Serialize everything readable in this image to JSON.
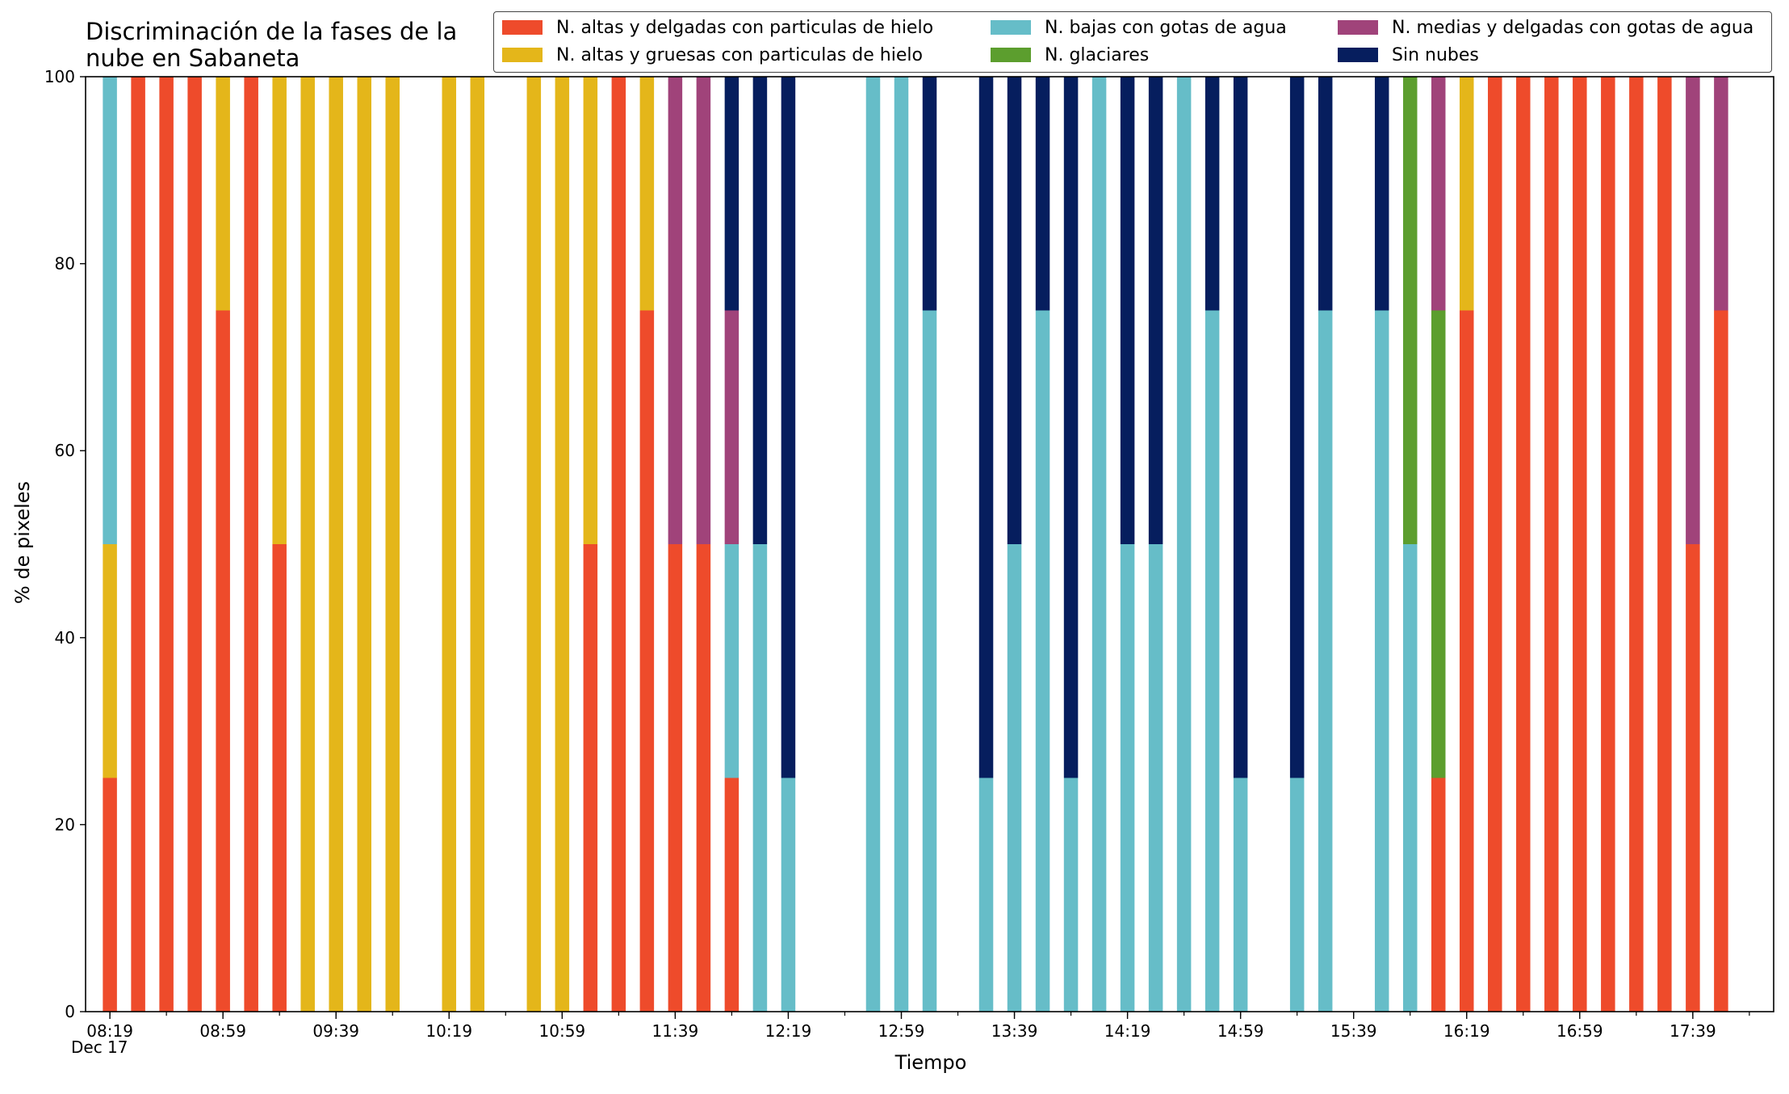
{
  "chart_data": {
    "type": "bar",
    "stacked": true,
    "title_lines": [
      "Discriminación de la fases de la",
      "nube en Sabaneta"
    ],
    "xlabel": "Tiempo",
    "xlabel_secondary": "Dec 17",
    "ylabel": "% de pixeles",
    "ylim": [
      0,
      100
    ],
    "yticks": [
      0,
      20,
      40,
      60,
      80,
      100
    ],
    "x_start": "08:19",
    "x_end": "17:59",
    "x_step_minutes": 10,
    "xtick_labels": [
      "08:19",
      "08:59",
      "09:39",
      "10:19",
      "10:59",
      "11:39",
      "12:19",
      "12:59",
      "13:39",
      "14:19",
      "14:59",
      "15:39",
      "16:19",
      "16:59",
      "17:39"
    ],
    "grid": false,
    "legend_position": "top-right",
    "series": [
      {
        "name": "N. altas y delgadas con particulas de hielo",
        "color": "#ee4b2b"
      },
      {
        "name": "N. altas y gruesas con particulas de hielo",
        "color": "#e4b61a"
      },
      {
        "name": "N. bajas con gotas de agua",
        "color": "#66bdc8"
      },
      {
        "name": "N. glaciares",
        "color": "#5c9e2e"
      },
      {
        "name": "N. medias y delgadas con gotas de agua",
        "color": "#a0437a"
      },
      {
        "name": "Sin nubes",
        "color": "#061e5e"
      }
    ],
    "bars": [
      {
        "time": "08:19",
        "values": [
          25,
          25,
          50,
          0,
          0,
          0
        ]
      },
      {
        "time": "08:29",
        "values": [
          100,
          0,
          0,
          0,
          0,
          0
        ]
      },
      {
        "time": "08:39",
        "values": [
          100,
          0,
          0,
          0,
          0,
          0
        ]
      },
      {
        "time": "08:49",
        "values": [
          100,
          0,
          0,
          0,
          0,
          0
        ]
      },
      {
        "time": "08:59",
        "values": [
          75,
          25,
          0,
          0,
          0,
          0
        ]
      },
      {
        "time": "09:09",
        "values": [
          100,
          0,
          0,
          0,
          0,
          0
        ]
      },
      {
        "time": "09:19",
        "values": [
          50,
          50,
          0,
          0,
          0,
          0
        ]
      },
      {
        "time": "09:29",
        "values": [
          0,
          100,
          0,
          0,
          0,
          0
        ]
      },
      {
        "time": "09:39",
        "values": [
          0,
          100,
          0,
          0,
          0,
          0
        ]
      },
      {
        "time": "09:49",
        "values": [
          0,
          100,
          0,
          0,
          0,
          0
        ]
      },
      {
        "time": "09:59",
        "values": [
          0,
          100,
          0,
          0,
          0,
          0
        ]
      },
      {
        "time": "10:19",
        "values": [
          0,
          100,
          0,
          0,
          0,
          0
        ]
      },
      {
        "time": "10:29",
        "values": [
          0,
          100,
          0,
          0,
          0,
          0
        ]
      },
      {
        "time": "10:49",
        "values": [
          0,
          100,
          0,
          0,
          0,
          0
        ]
      },
      {
        "time": "10:59",
        "values": [
          0,
          100,
          0,
          0,
          0,
          0
        ]
      },
      {
        "time": "11:09",
        "values": [
          50,
          50,
          0,
          0,
          0,
          0
        ]
      },
      {
        "time": "11:19",
        "values": [
          100,
          0,
          0,
          0,
          0,
          0
        ]
      },
      {
        "time": "11:29",
        "values": [
          75,
          25,
          0,
          0,
          0,
          0
        ]
      },
      {
        "time": "11:39",
        "values": [
          50,
          0,
          0,
          0,
          50,
          0
        ]
      },
      {
        "time": "11:49",
        "values": [
          50,
          0,
          0,
          0,
          50,
          0
        ]
      },
      {
        "time": "11:59",
        "values": [
          25,
          0,
          25,
          0,
          25,
          25
        ]
      },
      {
        "time": "12:09",
        "values": [
          0,
          0,
          50,
          0,
          0,
          50
        ]
      },
      {
        "time": "12:19",
        "values": [
          0,
          0,
          25,
          0,
          0,
          75
        ]
      },
      {
        "time": "12:49",
        "values": [
          0,
          0,
          100,
          0,
          0,
          0
        ]
      },
      {
        "time": "12:59",
        "values": [
          0,
          0,
          100,
          0,
          0,
          0
        ]
      },
      {
        "time": "13:09",
        "values": [
          0,
          0,
          75,
          0,
          0,
          25
        ]
      },
      {
        "time": "13:29",
        "values": [
          0,
          0,
          25,
          0,
          0,
          75
        ]
      },
      {
        "time": "13:39",
        "values": [
          0,
          0,
          50,
          0,
          0,
          50
        ]
      },
      {
        "time": "13:49",
        "values": [
          0,
          0,
          75,
          0,
          0,
          25
        ]
      },
      {
        "time": "13:59",
        "values": [
          0,
          0,
          25,
          0,
          0,
          75
        ]
      },
      {
        "time": "14:09",
        "values": [
          0,
          0,
          100,
          0,
          0,
          0
        ]
      },
      {
        "time": "14:19",
        "values": [
          0,
          0,
          50,
          0,
          0,
          50
        ]
      },
      {
        "time": "14:29",
        "values": [
          0,
          0,
          50,
          0,
          0,
          50
        ]
      },
      {
        "time": "14:39",
        "values": [
          0,
          0,
          100,
          0,
          0,
          0
        ]
      },
      {
        "time": "14:49",
        "values": [
          0,
          0,
          75,
          0,
          0,
          25
        ]
      },
      {
        "time": "14:59",
        "values": [
          0,
          0,
          25,
          0,
          0,
          75
        ]
      },
      {
        "time": "15:19",
        "values": [
          0,
          0,
          25,
          0,
          0,
          75
        ]
      },
      {
        "time": "15:29",
        "values": [
          0,
          0,
          75,
          0,
          0,
          25
        ]
      },
      {
        "time": "15:49",
        "values": [
          0,
          0,
          75,
          0,
          0,
          25
        ]
      },
      {
        "time": "15:59",
        "values": [
          0,
          0,
          50,
          50,
          0,
          0
        ]
      },
      {
        "time": "16:09",
        "values": [
          25,
          0,
          0,
          50,
          25,
          0
        ]
      },
      {
        "time": "16:19",
        "values": [
          75,
          25,
          0,
          0,
          0,
          0
        ]
      },
      {
        "time": "16:29",
        "values": [
          100,
          0,
          0,
          0,
          0,
          0
        ]
      },
      {
        "time": "16:39",
        "values": [
          100,
          0,
          0,
          0,
          0,
          0
        ]
      },
      {
        "time": "16:49",
        "values": [
          100,
          0,
          0,
          0,
          0,
          0
        ]
      },
      {
        "time": "16:59",
        "values": [
          100,
          0,
          0,
          0,
          0,
          0
        ]
      },
      {
        "time": "17:09",
        "values": [
          100,
          0,
          0,
          0,
          0,
          0
        ]
      },
      {
        "time": "17:19",
        "values": [
          100,
          0,
          0,
          0,
          0,
          0
        ]
      },
      {
        "time": "17:29",
        "values": [
          100,
          0,
          0,
          0,
          0,
          0
        ]
      },
      {
        "time": "17:39",
        "values": [
          50,
          0,
          0,
          0,
          50,
          0
        ]
      },
      {
        "time": "17:49",
        "values": [
          75,
          0,
          0,
          0,
          25,
          0
        ]
      }
    ]
  }
}
